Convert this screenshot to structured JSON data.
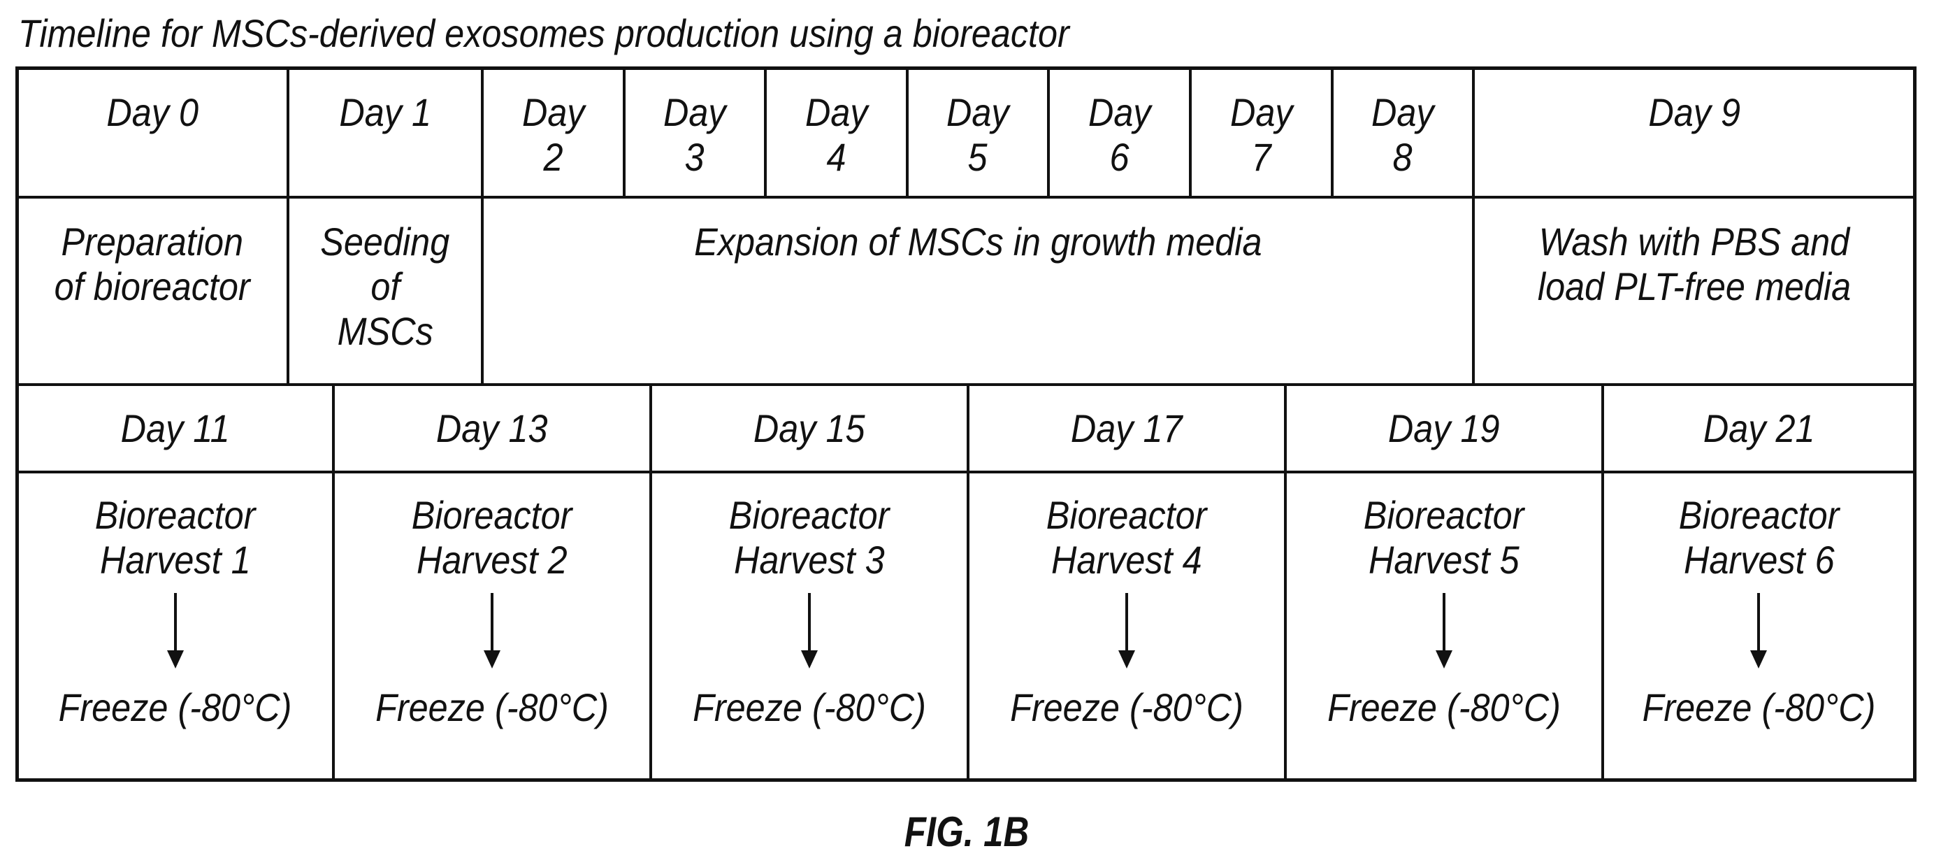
{
  "title": "Timeline for MSCs-derived exosomes production using a bioreactor",
  "row1_days": [
    {
      "lines": [
        "Day 0"
      ]
    },
    {
      "lines": [
        "Day 1"
      ]
    },
    {
      "lines": [
        "Day",
        "2"
      ]
    },
    {
      "lines": [
        "Day",
        "3"
      ]
    },
    {
      "lines": [
        "Day",
        "4"
      ]
    },
    {
      "lines": [
        "Day",
        "5"
      ]
    },
    {
      "lines": [
        "Day",
        "6"
      ]
    },
    {
      "lines": [
        "Day",
        "7"
      ]
    },
    {
      "lines": [
        "Day",
        "8"
      ]
    },
    {
      "lines": [
        "Day 9"
      ]
    }
  ],
  "activities": [
    {
      "lines": [
        "Preparation",
        "of bioreactor"
      ]
    },
    {
      "lines": [
        "Seeding",
        "of",
        "MSCs"
      ]
    },
    {
      "lines": [
        "Expansion of MSCs in growth media"
      ]
    },
    {
      "lines": [
        "Wash with PBS and",
        "load PLT-free media"
      ]
    }
  ],
  "harvest_days": [
    "Day 11",
    "Day 13",
    "Day 15",
    "Day 17",
    "Day 19",
    "Day 21"
  ],
  "harvests": [
    {
      "line1": "Bioreactor",
      "line2": "Harvest 1",
      "freeze": "Freeze (-80°C)"
    },
    {
      "line1": "Bioreactor",
      "line2": "Harvest 2",
      "freeze": "Freeze (-80°C)"
    },
    {
      "line1": "Bioreactor",
      "line2": "Harvest 3",
      "freeze": "Freeze (-80°C)"
    },
    {
      "line1": "Bioreactor",
      "line2": "Harvest 4",
      "freeze": "Freeze (-80°C)"
    },
    {
      "line1": "Bioreactor",
      "line2": "Harvest 5",
      "freeze": "Freeze (-80°C)"
    },
    {
      "line1": "Bioreactor",
      "line2": "Harvest 6",
      "freeze": "Freeze (-80°C)"
    }
  ],
  "figure_label": "FIG. 1B"
}
